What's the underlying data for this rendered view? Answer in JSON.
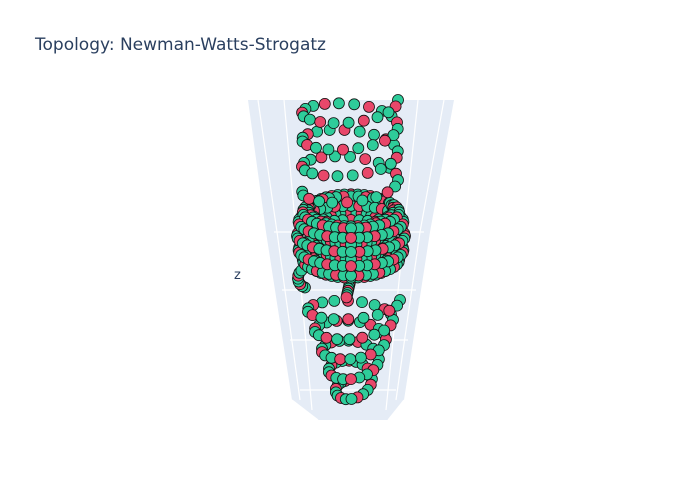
{
  "chart_data": {
    "type": "scatter3d",
    "title": "Topology: Newman-Watts-Strogatz",
    "axis_labels": {
      "x": "",
      "y": "",
      "z": "z"
    },
    "grid": true,
    "scene_background": "#e5ecf6",
    "grid_color": "#ffffff",
    "marker_outline": "#111111",
    "series": [
      {
        "color": "#2ecc9a"
      },
      {
        "color": "#e8476a"
      }
    ]
  }
}
